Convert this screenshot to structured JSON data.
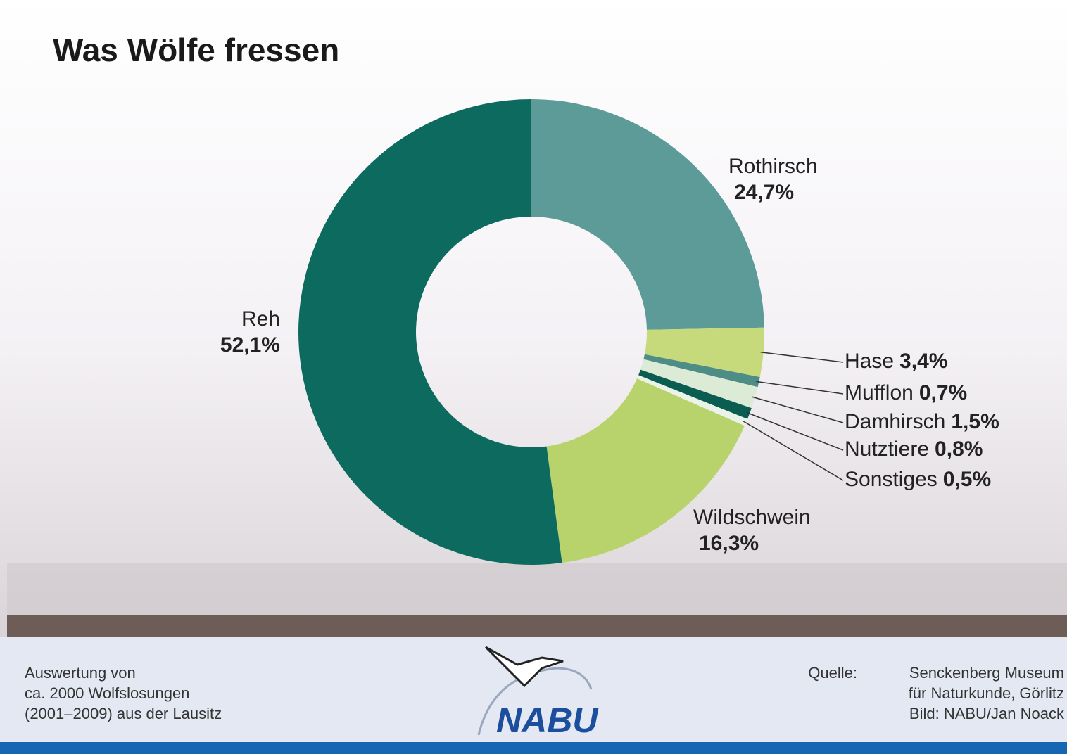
{
  "chart_data": {
    "type": "pie",
    "title": "Was Wölfe fressen",
    "categories": [
      "Rothirsch",
      "Hase",
      "Mufflon",
      "Damhirsch",
      "Nutztiere",
      "Sonstiges",
      "Wildschwein",
      "Reh"
    ],
    "values": [
      24.7,
      3.4,
      0.7,
      1.5,
      0.8,
      0.5,
      16.3,
      52.1
    ],
    "value_labels": [
      "24,7%",
      "3,4%",
      "0,7%",
      "1,5%",
      "0,8%",
      "0,5%",
      "16,3%",
      "52,1%"
    ],
    "colors": [
      "#5c9b97",
      "#c6da7c",
      "#4e8d86",
      "#dcebd6",
      "#0a5d50",
      "#e9f3e8",
      "#b8d36c",
      "#0c6b5e"
    ]
  },
  "footer": {
    "left": [
      "Auswertung von",
      "ca. 2000 Wolfslosungen",
      "(2001–2009) aus der Lausitz"
    ],
    "source_label": "Quelle:",
    "source": [
      "Senckenberg Museum",
      "für Naturkunde, Görlitz",
      "Bild: NABU/Jan Noack"
    ],
    "logo": "NABU"
  }
}
